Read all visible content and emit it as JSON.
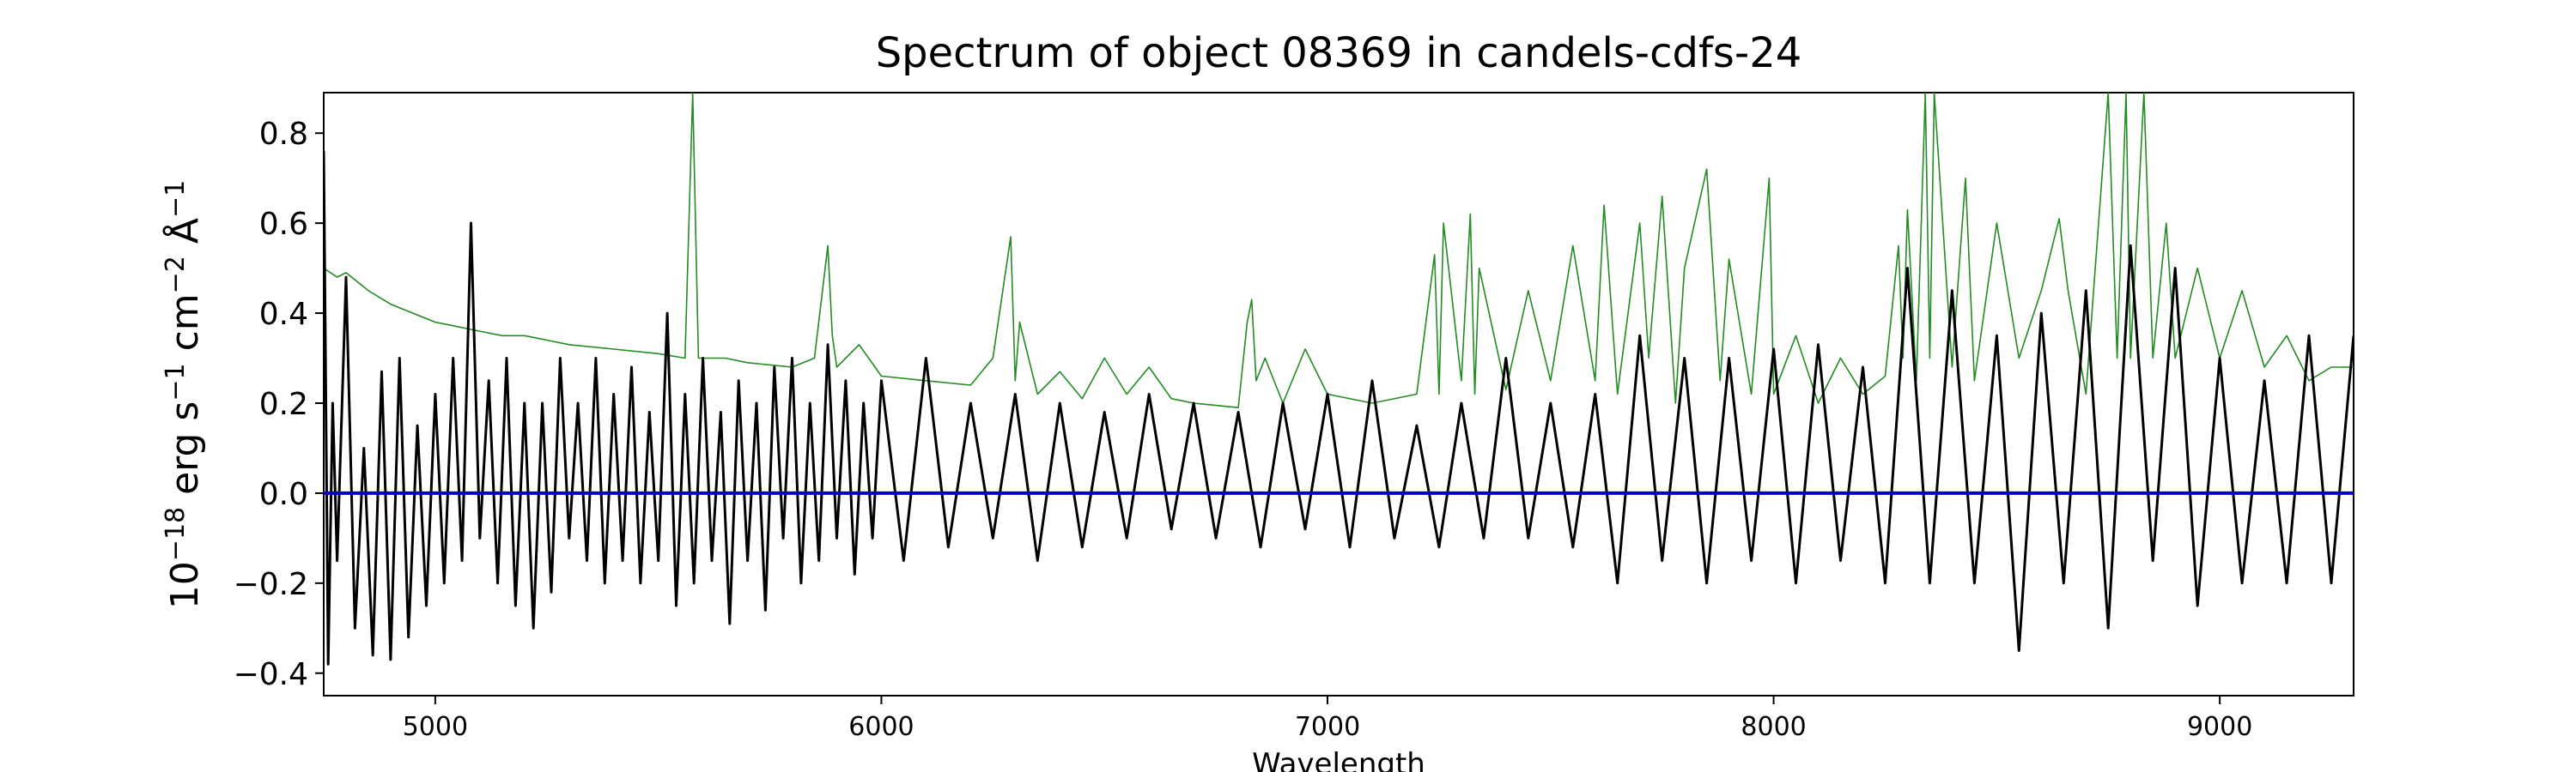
{
  "chart_data": {
    "type": "line",
    "title": "Spectrum of object 08369 in candels-cdfs-24",
    "xlabel": "Wavelength",
    "ylabel_parts": {
      "base": "10",
      "exp1": "−18",
      "unit1": " erg s",
      "exp2": "−1",
      "unit2": " cm",
      "exp3": "−2",
      "unit3": " Å",
      "exp4": "−1"
    },
    "xlim": [
      4750,
      9300
    ],
    "ylim": [
      -0.45,
      0.89
    ],
    "xticks": [
      5000,
      6000,
      7000,
      8000,
      9000
    ],
    "xtick_labels": [
      "5000",
      "6000",
      "7000",
      "8000",
      "9000"
    ],
    "yticks": [
      -0.4,
      -0.2,
      0.0,
      0.2,
      0.4,
      0.6,
      0.8
    ],
    "ytick_labels": [
      "−0.4",
      "−0.2",
      "0.0",
      "0.2",
      "0.4",
      "0.6",
      "0.8"
    ],
    "grid": false,
    "legend": "none",
    "series": [
      {
        "color": "#000000",
        "x": [
          4750,
          4760,
          4770,
          4780,
          4800,
          4820,
          4840,
          4860,
          4880,
          4900,
          4920,
          4940,
          4960,
          4980,
          5000,
          5020,
          5040,
          5060,
          5080,
          5100,
          5120,
          5140,
          5160,
          5180,
          5200,
          5220,
          5240,
          5260,
          5280,
          5300,
          5320,
          5340,
          5360,
          5380,
          5400,
          5420,
          5440,
          5460,
          5480,
          5500,
          5520,
          5540,
          5560,
          5580,
          5600,
          5620,
          5640,
          5660,
          5680,
          5700,
          5720,
          5740,
          5760,
          5780,
          5800,
          5820,
          5840,
          5860,
          5880,
          5900,
          5920,
          5940,
          5960,
          5980,
          6000,
          6050,
          6100,
          6150,
          6200,
          6250,
          6300,
          6350,
          6400,
          6450,
          6500,
          6550,
          6600,
          6650,
          6700,
          6750,
          6800,
          6850,
          6900,
          6950,
          7000,
          7050,
          7100,
          7150,
          7200,
          7250,
          7300,
          7350,
          7400,
          7450,
          7500,
          7550,
          7600,
          7650,
          7700,
          7750,
          7800,
          7850,
          7900,
          7950,
          8000,
          8050,
          8100,
          8150,
          8200,
          8250,
          8300,
          8350,
          8400,
          8450,
          8500,
          8550,
          8600,
          8650,
          8700,
          8750,
          8800,
          8850,
          8900,
          8950,
          9000,
          9050,
          9100,
          9150,
          9200,
          9250,
          9300
        ],
        "y": [
          0.76,
          -0.38,
          0.2,
          -0.15,
          0.48,
          -0.3,
          0.1,
          -0.36,
          0.27,
          -0.37,
          0.3,
          -0.32,
          0.15,
          -0.25,
          0.22,
          -0.2,
          0.3,
          -0.15,
          0.6,
          -0.1,
          0.25,
          -0.2,
          0.3,
          -0.25,
          0.2,
          -0.3,
          0.2,
          -0.22,
          0.3,
          -0.1,
          0.2,
          -0.15,
          0.3,
          -0.2,
          0.22,
          -0.15,
          0.28,
          -0.2,
          0.18,
          -0.15,
          0.4,
          -0.25,
          0.22,
          -0.2,
          0.3,
          -0.15,
          0.18,
          -0.29,
          0.25,
          -0.15,
          0.2,
          -0.26,
          0.28,
          -0.1,
          0.3,
          -0.2,
          0.2,
          -0.15,
          0.33,
          -0.1,
          0.25,
          -0.18,
          0.2,
          -0.1,
          0.25,
          -0.15,
          0.3,
          -0.12,
          0.2,
          -0.1,
          0.22,
          -0.15,
          0.2,
          -0.12,
          0.18,
          -0.1,
          0.22,
          -0.08,
          0.2,
          -0.1,
          0.18,
          -0.12,
          0.2,
          -0.08,
          0.22,
          -0.12,
          0.25,
          -0.1,
          0.15,
          -0.12,
          0.2,
          -0.1,
          0.3,
          -0.1,
          0.2,
          -0.12,
          0.22,
          -0.2,
          0.35,
          -0.15,
          0.3,
          -0.2,
          0.3,
          -0.15,
          0.32,
          -0.2,
          0.33,
          -0.15,
          0.28,
          -0.2,
          0.5,
          -0.2,
          0.45,
          -0.2,
          0.35,
          -0.35,
          0.4,
          -0.2,
          0.45,
          -0.3,
          0.55,
          -0.15,
          0.5,
          -0.25,
          0.3,
          -0.2,
          0.25,
          -0.2,
          0.35,
          -0.2,
          0.35
        ]
      },
      {
        "color": "#228b22",
        "x": [
          4750,
          4780,
          4800,
          4850,
          4900,
          4950,
          5000,
          5050,
          5100,
          5150,
          5200,
          5250,
          5300,
          5400,
          5500,
          5560,
          5577,
          5590,
          5650,
          5700,
          5800,
          5850,
          5880,
          5890,
          5900,
          5950,
          6000,
          6100,
          6200,
          6250,
          6290,
          6300,
          6310,
          6350,
          6400,
          6450,
          6500,
          6550,
          6600,
          6650,
          6700,
          6800,
          6820,
          6830,
          6840,
          6860,
          6900,
          6950,
          7000,
          7100,
          7200,
          7240,
          7250,
          7260,
          7300,
          7320,
          7330,
          7340,
          7400,
          7450,
          7500,
          7550,
          7600,
          7620,
          7650,
          7700,
          7720,
          7750,
          7780,
          7800,
          7850,
          7880,
          7900,
          7950,
          7990,
          8000,
          8050,
          8100,
          8150,
          8200,
          8250,
          8280,
          8290,
          8300,
          8320,
          8340,
          8350,
          8360,
          8400,
          8430,
          8450,
          8500,
          8550,
          8600,
          8640,
          8660,
          8700,
          8750,
          8770,
          8790,
          8800,
          8830,
          8850,
          8880,
          8900,
          8950,
          9000,
          9050,
          9100,
          9150,
          9200,
          9250,
          9300
        ],
        "y": [
          0.5,
          0.48,
          0.49,
          0.45,
          0.42,
          0.4,
          0.38,
          0.37,
          0.36,
          0.35,
          0.35,
          0.34,
          0.33,
          0.32,
          0.31,
          0.3,
          0.89,
          0.3,
          0.3,
          0.29,
          0.28,
          0.3,
          0.55,
          0.35,
          0.28,
          0.33,
          0.26,
          0.25,
          0.24,
          0.3,
          0.57,
          0.25,
          0.38,
          0.22,
          0.27,
          0.21,
          0.3,
          0.22,
          0.28,
          0.21,
          0.2,
          0.19,
          0.38,
          0.43,
          0.25,
          0.3,
          0.2,
          0.32,
          0.22,
          0.2,
          0.22,
          0.53,
          0.22,
          0.6,
          0.25,
          0.62,
          0.22,
          0.5,
          0.23,
          0.45,
          0.25,
          0.55,
          0.25,
          0.64,
          0.22,
          0.6,
          0.3,
          0.66,
          0.2,
          0.5,
          0.72,
          0.25,
          0.52,
          0.22,
          0.7,
          0.22,
          0.35,
          0.2,
          0.3,
          0.22,
          0.26,
          0.55,
          0.3,
          0.63,
          0.25,
          0.89,
          0.3,
          0.89,
          0.28,
          0.7,
          0.25,
          0.6,
          0.3,
          0.45,
          0.61,
          0.45,
          0.22,
          0.89,
          0.3,
          0.89,
          0.3,
          0.89,
          0.3,
          0.6,
          0.3,
          0.5,
          0.3,
          0.45,
          0.28,
          0.35,
          0.25,
          0.28,
          0.28
        ]
      },
      {
        "color": "#0000cc",
        "x": [
          4750,
          9300
        ],
        "y": [
          0.0,
          0.0
        ]
      }
    ]
  }
}
